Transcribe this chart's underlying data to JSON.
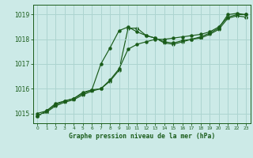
{
  "title": "Graphe pression niveau de la mer (hPa)",
  "background_color": "#cceae7",
  "grid_color": "#add4d0",
  "line_color": "#1a5c1a",
  "xlim": [
    -0.5,
    23.5
  ],
  "ylim": [
    1014.6,
    1019.4
  ],
  "yticks": [
    1015,
    1016,
    1017,
    1018,
    1019
  ],
  "xticks": [
    0,
    1,
    2,
    3,
    4,
    5,
    6,
    7,
    8,
    9,
    10,
    11,
    12,
    13,
    14,
    15,
    16,
    17,
    18,
    19,
    20,
    21,
    22,
    23
  ],
  "series1_x": [
    0,
    1,
    2,
    3,
    4,
    5,
    6,
    7,
    8,
    9,
    10,
    11,
    12,
    13,
    14,
    15,
    16,
    17,
    18,
    19,
    20,
    21,
    22,
    23
  ],
  "series1_y": [
    1015.0,
    1015.1,
    1015.4,
    1015.5,
    1015.6,
    1015.85,
    1015.95,
    1016.0,
    1016.35,
    1016.8,
    1017.6,
    1017.8,
    1017.9,
    1018.0,
    1018.0,
    1018.05,
    1018.1,
    1018.15,
    1018.2,
    1018.3,
    1018.5,
    1018.9,
    1019.0,
    1019.0
  ],
  "series2_x": [
    0,
    1,
    2,
    3,
    4,
    5,
    6,
    7,
    8,
    9,
    10,
    11,
    12,
    13,
    14,
    15,
    16,
    17,
    18,
    19,
    20,
    21,
    22,
    23
  ],
  "series2_y": [
    1014.9,
    1015.1,
    1015.35,
    1015.5,
    1015.6,
    1015.8,
    1015.95,
    1017.0,
    1017.65,
    1018.35,
    1018.5,
    1018.3,
    1018.15,
    1018.05,
    1017.9,
    1017.85,
    1017.95,
    1018.0,
    1018.1,
    1018.25,
    1018.45,
    1019.0,
    1019.05,
    1019.0
  ],
  "series3_x": [
    0,
    1,
    2,
    3,
    4,
    5,
    6,
    7,
    8,
    9,
    10,
    11,
    12,
    13,
    14,
    15,
    16,
    17,
    18,
    19,
    20,
    21,
    22,
    23
  ],
  "series3_y": [
    1014.9,
    1015.05,
    1015.3,
    1015.45,
    1015.55,
    1015.75,
    1015.9,
    1016.0,
    1016.3,
    1016.75,
    1018.45,
    1018.45,
    1018.15,
    1018.05,
    1017.85,
    1017.8,
    1017.9,
    1018.0,
    1018.05,
    1018.2,
    1018.4,
    1018.85,
    1018.95,
    1018.9
  ]
}
